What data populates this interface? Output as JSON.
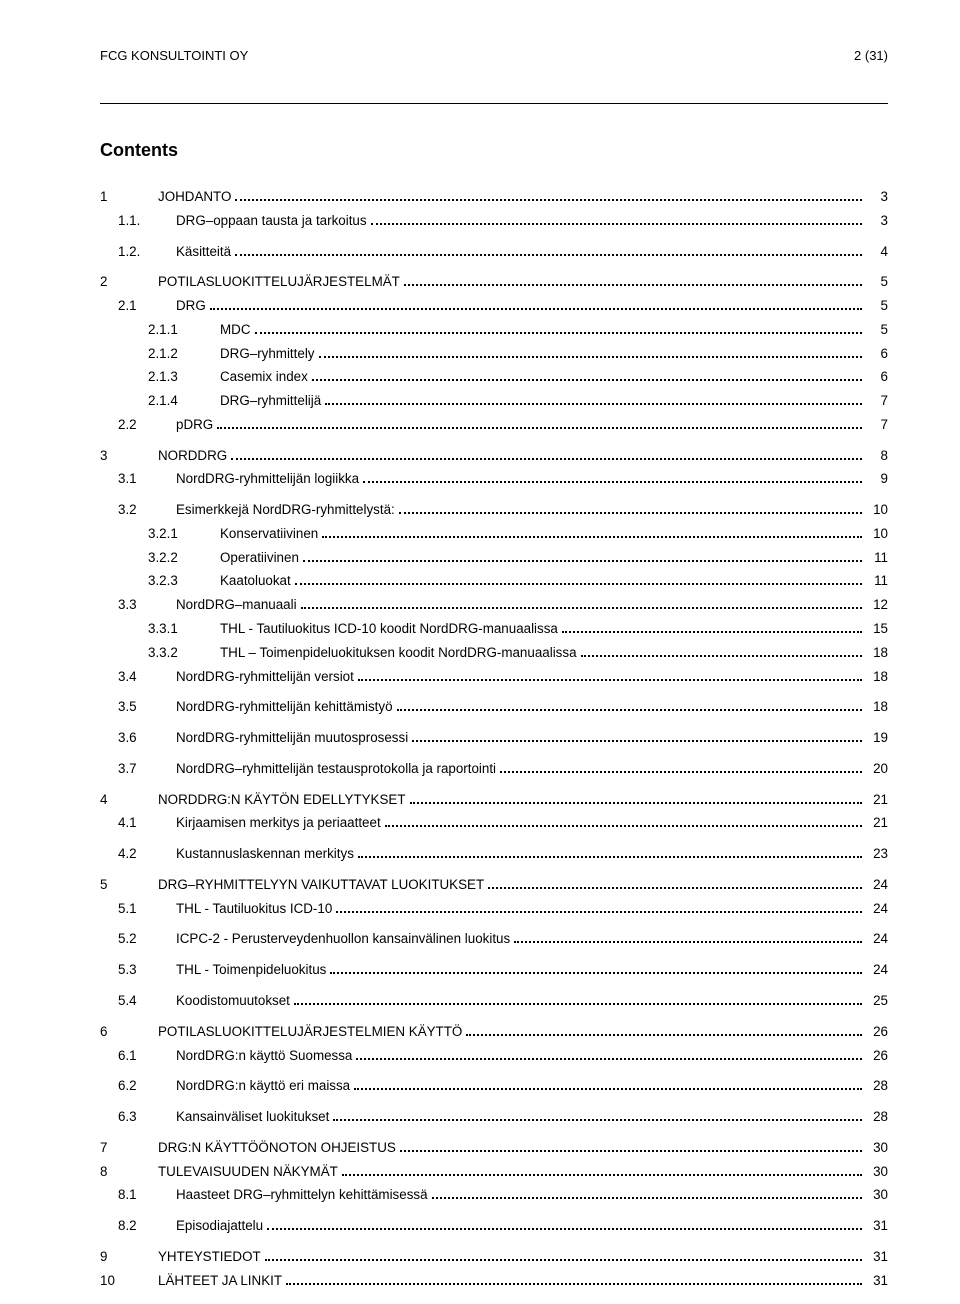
{
  "header": {
    "left": "FCG KONSULTOINTI OY",
    "right": "2 (31)"
  },
  "contentsLabel": "Contents",
  "toc": [
    {
      "level": 0,
      "num": "1",
      "title": "JOHDANTO",
      "page": "3",
      "gapAfter": false
    },
    {
      "level": 1,
      "num": "1.1.",
      "title": "DRG–oppaan tausta ja tarkoitus",
      "page": "3",
      "gapAfter": true
    },
    {
      "level": 1,
      "num": "1.2.",
      "title": "Käsitteitä",
      "page": "4",
      "gapAfter": true
    },
    {
      "level": 0,
      "num": "2",
      "title": "POTILASLUOKITTELUJÄRJESTELMÄT",
      "page": "5",
      "gapAfter": false
    },
    {
      "level": 1,
      "num": "2.1",
      "title": "DRG",
      "page": "5",
      "gapAfter": false
    },
    {
      "level": 2,
      "num": "2.1.1",
      "title": "MDC",
      "page": "5",
      "gapAfter": false
    },
    {
      "level": 2,
      "num": "2.1.2",
      "title": "DRG–ryhmittely",
      "page": "6",
      "gapAfter": false
    },
    {
      "level": 2,
      "num": "2.1.3",
      "title": "Casemix index",
      "page": "6",
      "gapAfter": false
    },
    {
      "level": 2,
      "num": "2.1.4",
      "title": "DRG–ryhmittelijä",
      "page": "7",
      "gapAfter": false
    },
    {
      "level": 1,
      "num": "2.2",
      "title": "pDRG",
      "page": "7",
      "gapAfter": true
    },
    {
      "level": 0,
      "num": "3",
      "title": "NORDDRG",
      "page": "8",
      "gapAfter": false
    },
    {
      "level": 1,
      "num": "3.1",
      "title": "NordDRG-ryhmittelijän logiikka",
      "page": "9",
      "gapAfter": true
    },
    {
      "level": 1,
      "num": "3.2",
      "title": "Esimerkkejä NordDRG-ryhmittelystä:",
      "page": "10",
      "gapAfter": false
    },
    {
      "level": 2,
      "num": "3.2.1",
      "title": "Konservatiivinen",
      "page": "10",
      "gapAfter": false
    },
    {
      "level": 2,
      "num": "3.2.2",
      "title": "Operatiivinen",
      "page": "11",
      "gapAfter": false
    },
    {
      "level": 2,
      "num": "3.2.3",
      "title": "Kaatoluokat",
      "page": "11",
      "gapAfter": false
    },
    {
      "level": 1,
      "num": "3.3",
      "title": "NordDRG–manuaali",
      "page": "12",
      "gapAfter": false
    },
    {
      "level": 2,
      "num": "3.3.1",
      "title": "THL - Tautiluokitus ICD-10 koodit NordDRG-manuaalissa",
      "page": "15",
      "gapAfter": false
    },
    {
      "level": 2,
      "num": "3.3.2",
      "title": "THL – Toimenpideluokituksen koodit NordDRG-manuaalissa",
      "page": "18",
      "gapAfter": false
    },
    {
      "level": 1,
      "num": "3.4",
      "title": "NordDRG-ryhmittelijän versiot",
      "page": "18",
      "gapAfter": true
    },
    {
      "level": 1,
      "num": "3.5",
      "title": "NordDRG-ryhmittelijän kehittämistyö",
      "page": "18",
      "gapAfter": true
    },
    {
      "level": 1,
      "num": "3.6",
      "title": "NordDRG-ryhmittelijän muutosprosessi",
      "page": "19",
      "gapAfter": true
    },
    {
      "level": 1,
      "num": "3.7",
      "title": "NordDRG–ryhmittelijän testausprotokolla ja raportointi",
      "page": "20",
      "gapAfter": true
    },
    {
      "level": 0,
      "num": "4",
      "title": "NORDDRG:N KÄYTÖN EDELLYTYKSET",
      "page": "21",
      "gapAfter": false
    },
    {
      "level": 1,
      "num": "4.1",
      "title": "Kirjaamisen merkitys ja periaatteet",
      "page": "21",
      "gapAfter": true
    },
    {
      "level": 1,
      "num": "4.2",
      "title": "Kustannuslaskennan merkitys",
      "page": "23",
      "gapAfter": true
    },
    {
      "level": 0,
      "num": "5",
      "title": "DRG–RYHMITTELYYN VAIKUTTAVAT LUOKITUKSET",
      "page": "24",
      "gapAfter": false
    },
    {
      "level": 1,
      "num": "5.1",
      "title": "THL - Tautiluokitus ICD-10",
      "page": "24",
      "gapAfter": true
    },
    {
      "level": 1,
      "num": "5.2",
      "title": "ICPC-2 - Perusterveydenhuollon kansainvälinen luokitus",
      "page": "24",
      "gapAfter": true
    },
    {
      "level": 1,
      "num": "5.3",
      "title": "THL - Toimenpideluokitus",
      "page": "24",
      "gapAfter": true
    },
    {
      "level": 1,
      "num": "5.4",
      "title": "Koodistomuutokset",
      "page": "25",
      "gapAfter": true
    },
    {
      "level": 0,
      "num": "6",
      "title": "POTILASLUOKITTELUJÄRJESTELMIEN KÄYTTÖ",
      "page": "26",
      "gapAfter": false
    },
    {
      "level": 1,
      "num": "6.1",
      "title": "NordDRG:n käyttö Suomessa",
      "page": "26",
      "gapAfter": true
    },
    {
      "level": 1,
      "num": "6.2",
      "title": "NordDRG:n käyttö eri maissa",
      "page": "28",
      "gapAfter": true
    },
    {
      "level": 1,
      "num": "6.3",
      "title": "Kansainväliset luokitukset",
      "page": "28",
      "gapAfter": true
    },
    {
      "level": 0,
      "num": "7",
      "title": "DRG:N KÄYTTÖÖNOTON OHJEISTUS",
      "page": "30",
      "gapAfter": false
    },
    {
      "level": 0,
      "num": "8",
      "title": "TULEVAISUUDEN NÄKYMÄT",
      "page": "30",
      "gapAfter": false
    },
    {
      "level": 1,
      "num": "8.1",
      "title": "Haasteet DRG–ryhmittelyn kehittämisessä",
      "page": "30",
      "gapAfter": true
    },
    {
      "level": 1,
      "num": "8.2",
      "title": "Episodiajattelu",
      "page": "31",
      "gapAfter": true
    },
    {
      "level": 0,
      "num": "9",
      "title": "YHTEYSTIEDOT",
      "page": "31",
      "gapAfter": false
    },
    {
      "level": 0,
      "num": "10",
      "title": "LÄHTEET JA LINKIT",
      "page": "31",
      "gapAfter": false
    }
  ]
}
